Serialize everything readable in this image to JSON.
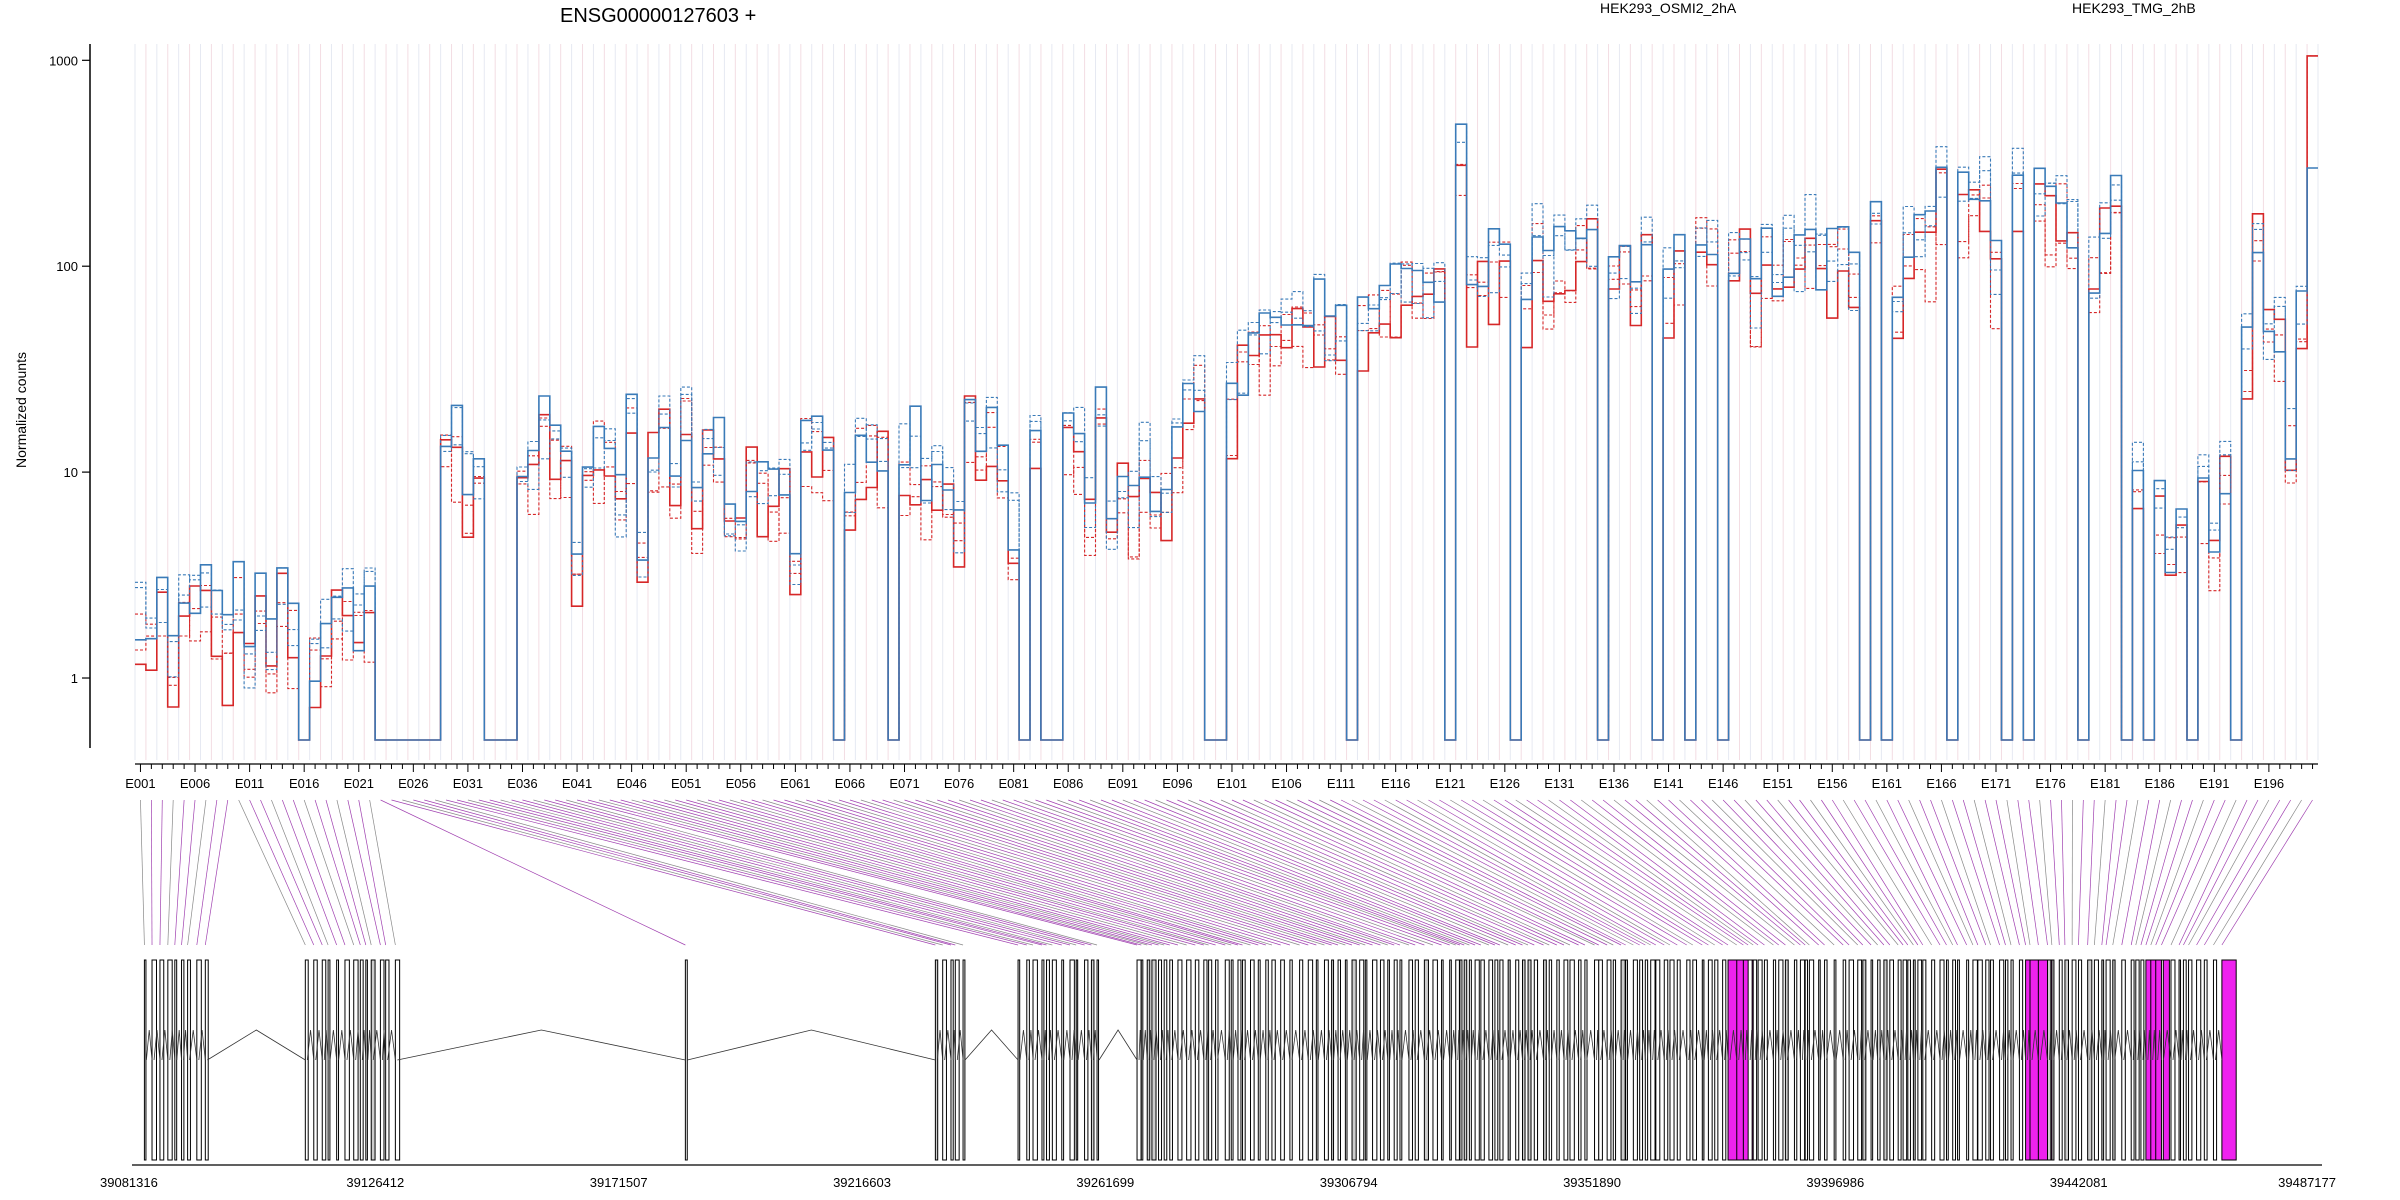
{
  "chart_data": {
    "type": "line",
    "title": "ENSG00000127603 +",
    "ylabel": "Normalized counts",
    "xlabel": "",
    "y_scale": "log",
    "ylim": [
      0.5,
      1200
    ],
    "y_ticks": [
      1,
      10,
      100,
      1000
    ],
    "y_tick_labels": [
      "1",
      "10",
      "100",
      "1000"
    ],
    "grid": false,
    "exon_count": 200,
    "exon_labels": [
      "E001",
      "E006",
      "E011",
      "E016",
      "E021",
      "E026",
      "E031",
      "E036",
      "E041",
      "E046",
      "E051",
      "E056",
      "E061",
      "E066",
      "E071",
      "E076",
      "E081",
      "E086",
      "E091",
      "E096",
      "E101",
      "E106",
      "E111",
      "E116",
      "E121",
      "E126",
      "E131",
      "E136",
      "E141",
      "E146",
      "E151",
      "E156",
      "E161",
      "E166",
      "E171",
      "E176",
      "E181",
      "E186",
      "E191",
      "E196"
    ],
    "genomic_coords": [
      "39081316",
      "39126412",
      "39171507",
      "39216603",
      "39261699",
      "39306794",
      "39351890",
      "39396986",
      "39442081",
      "39487177"
    ],
    "highlighted_exons_color": "#ee22ee",
    "series": [
      {
        "name": "HEK293_OSMI2_2hA",
        "color": "#d62728",
        "replicates": 3
      },
      {
        "name": "HEK293_TMG_2hB",
        "color": "#3a7bb8",
        "replicates": 3
      }
    ]
  }
}
